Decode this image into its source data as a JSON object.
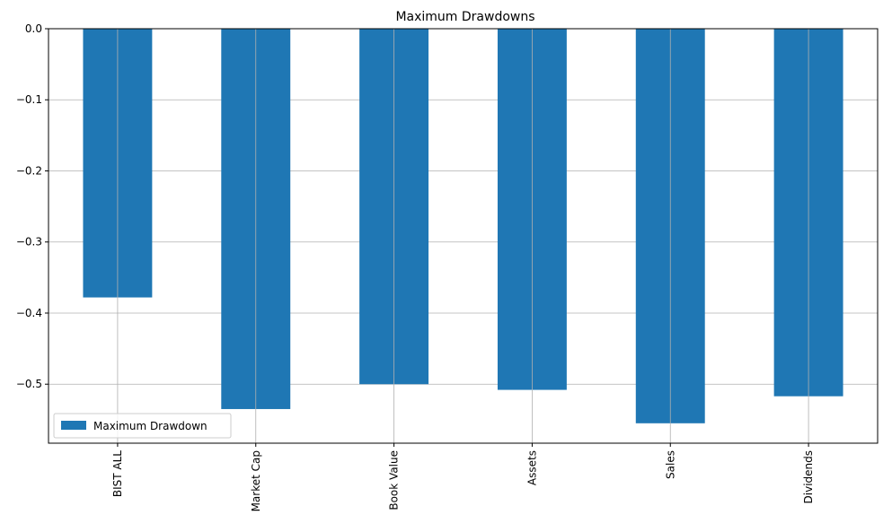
{
  "chart_data": {
    "type": "bar",
    "title": "Maximum Drawdowns",
    "xlabel": "",
    "ylabel": "",
    "categories": [
      "BIST ALL",
      "Market Cap",
      "Book Value",
      "Assets",
      "Sales",
      "Dividends"
    ],
    "series": [
      {
        "name": "Maximum Drawdown",
        "values": [
          -0.378,
          -0.535,
          -0.5,
          -0.508,
          -0.555,
          -0.517
        ]
      }
    ],
    "ylim": [
      -0.583,
      0.0
    ],
    "yticks": [
      0.0,
      -0.1,
      -0.2,
      -0.3,
      -0.4,
      -0.5
    ],
    "ytick_labels": [
      "0.0",
      "−0.1",
      "−0.2",
      "−0.3",
      "−0.4",
      "−0.5"
    ],
    "grid": true,
    "legend_position": "bottom-left",
    "colors": {
      "bar": "#1f77b4",
      "grid": "#b0b0b0",
      "axes": "#000000"
    }
  }
}
